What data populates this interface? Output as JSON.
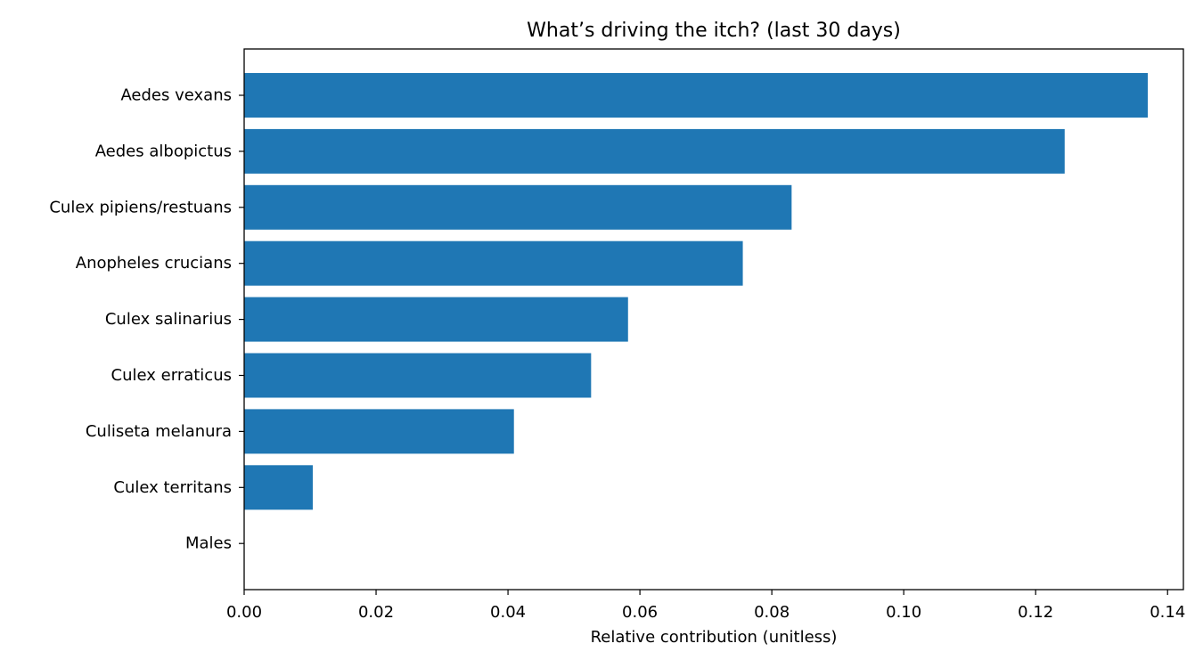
{
  "chart_data": {
    "type": "bar",
    "orientation": "horizontal",
    "title": "What’s driving the itch? (last 30 days)",
    "xlabel": "Relative contribution (unitless)",
    "ylabel": "",
    "xlim": [
      0,
      0.1424
    ],
    "xticks": [
      "0.00",
      "0.02",
      "0.04",
      "0.06",
      "0.08",
      "0.10",
      "0.12",
      "0.14"
    ],
    "categories": [
      "Aedes vexans",
      "Aedes albopictus",
      "Culex pipiens/restuans",
      "Anopheles crucians",
      "Culex salinarius",
      "Culex erraticus",
      "Culiseta melanura",
      "Culex territans",
      "Males"
    ],
    "values": [
      0.137,
      0.1244,
      0.083,
      0.0756,
      0.0582,
      0.0526,
      0.0409,
      0.0104,
      0.0
    ],
    "bar_color": "#1f77b4",
    "grid": false,
    "legend": "none"
  }
}
